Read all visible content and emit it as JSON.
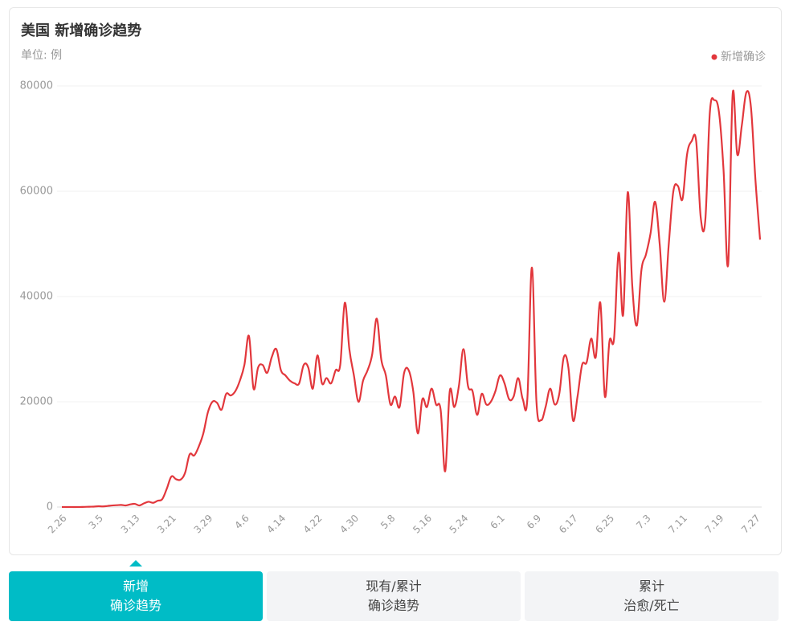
{
  "chart_data": {
    "type": "line",
    "title": "美国 新增确诊趋势",
    "subtitle": "单位: 例",
    "categories": [
      "2.26",
      null,
      null,
      null,
      null,
      null,
      null,
      null,
      "3.5",
      null,
      null,
      null,
      null,
      null,
      null,
      null,
      "3.13",
      null,
      null,
      null,
      null,
      null,
      null,
      null,
      "3.21",
      null,
      null,
      null,
      null,
      null,
      null,
      null,
      "3.29",
      null,
      null,
      null,
      null,
      null,
      null,
      null,
      "4.6",
      null,
      null,
      null,
      null,
      null,
      null,
      null,
      "4.14",
      null,
      null,
      null,
      null,
      null,
      null,
      null,
      "4.22",
      null,
      null,
      null,
      null,
      null,
      null,
      null,
      "4.30",
      null,
      null,
      null,
      null,
      null,
      null,
      null,
      "5.8",
      null,
      null,
      null,
      null,
      null,
      null,
      null,
      "5.16",
      null,
      null,
      null,
      null,
      null,
      null,
      null,
      "5.24",
      null,
      null,
      null,
      null,
      null,
      null,
      null,
      "6.1",
      null,
      null,
      null,
      null,
      null,
      null,
      null,
      "6.9",
      null,
      null,
      null,
      null,
      null,
      null,
      null,
      "6.17",
      null,
      null,
      null,
      null,
      null,
      null,
      null,
      "6.25",
      null,
      null,
      null,
      null,
      null,
      null,
      null,
      "7.3",
      null,
      null,
      null,
      null,
      null,
      null,
      null,
      "7.11",
      null,
      null,
      null,
      null,
      null,
      null,
      null,
      "7.19",
      null,
      null,
      null,
      null,
      null,
      null,
      null,
      "7.27",
      null
    ],
    "series": [
      {
        "name": "新增确诊",
        "color": "#e2373c",
        "values": [
          10,
          5,
          8,
          0,
          12,
          30,
          60,
          80,
          150,
          120,
          200,
          300,
          350,
          400,
          300,
          500,
          600,
          300,
          700,
          1000,
          800,
          1200,
          1500,
          3500,
          5800,
          5300,
          5200,
          6500,
          10000,
          9800,
          11500,
          14000,
          18000,
          20000,
          19800,
          18500,
          21500,
          21200,
          22000,
          24000,
          27000,
          32500,
          22500,
          26500,
          27000,
          25500,
          28500,
          30000,
          26000,
          25000,
          24000,
          23500,
          23500,
          27000,
          26500,
          22500,
          28800,
          23500,
          24500,
          23500,
          26000,
          27000,
          38800,
          30000,
          25000,
          20000,
          24000,
          26000,
          29000,
          35800,
          28000,
          25000,
          19500,
          21000,
          19000,
          25500,
          26000,
          22000,
          14000,
          20500,
          19000,
          22500,
          19500,
          18500,
          6800,
          22000,
          19000,
          23000,
          30000,
          23000,
          22000,
          17500,
          21500,
          19500,
          20000,
          22000,
          25000,
          23500,
          20500,
          21000,
          24500,
          20500,
          20500,
          45500,
          20000,
          16500,
          19000,
          22500,
          19500,
          21500,
          28500,
          26500,
          16500,
          21000,
          27000,
          27500,
          32000,
          28500,
          38800,
          21000,
          31500,
          32000,
          48300,
          36500,
          59800,
          42000,
          34500,
          45000,
          48000,
          52000,
          58000,
          50000,
          39000,
          50000,
          60000,
          61000,
          58500,
          67000,
          69500,
          69500,
          55000,
          54500,
          75000,
          77300,
          75000,
          64000,
          46000,
          78500,
          67000,
          72500,
          78800,
          76000,
          62000,
          50800
        ]
      }
    ],
    "ylim": [
      0,
      80000
    ],
    "yticks": [
      0,
      20000,
      40000,
      60000,
      80000
    ],
    "grid": true,
    "legend": "top-right"
  },
  "tabs": [
    {
      "lines": [
        "新增",
        "确诊趋势"
      ],
      "active": true
    },
    {
      "lines": [
        "现有/累计",
        "确诊趋势"
      ],
      "active": false
    },
    {
      "lines": [
        "累计",
        "治愈/死亡"
      ],
      "active": false
    }
  ]
}
